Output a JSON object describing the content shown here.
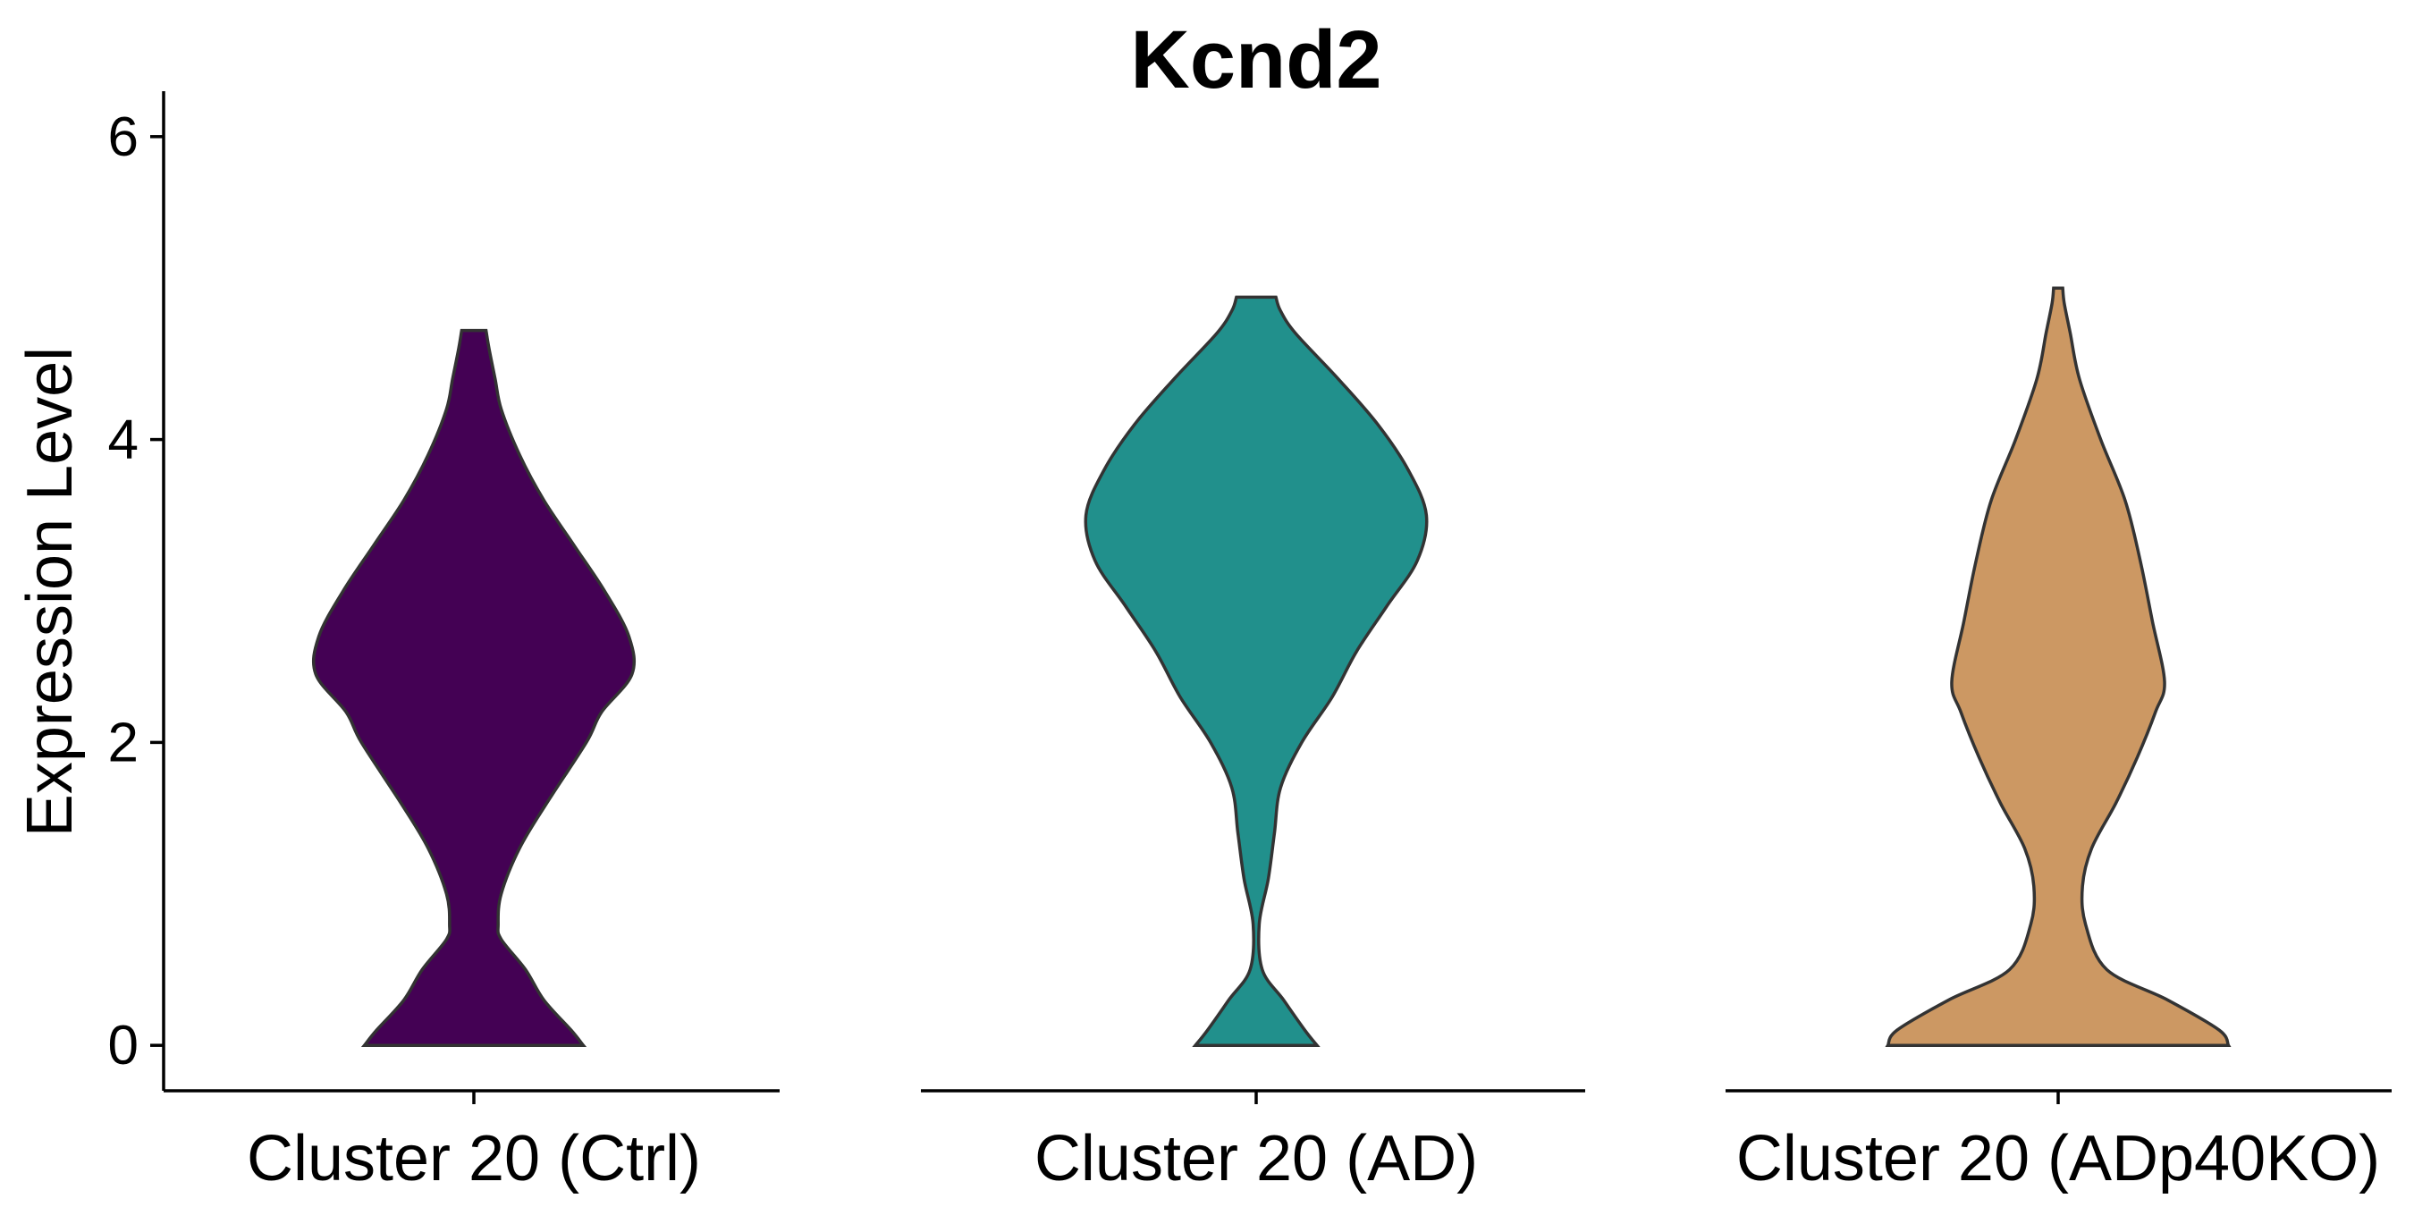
{
  "chart_data": {
    "type": "violin",
    "title": "Kcnd2",
    "xlabel": "",
    "ylabel": "Expression Level",
    "ylim": [
      -0.3,
      6.3
    ],
    "yticks": [
      0,
      2,
      4,
      6
    ],
    "categories": [
      "Cluster 20 (Ctrl)",
      "Cluster 20 (AD)",
      "Cluster 20 (ADp40KO)"
    ],
    "series": [
      {
        "category": "Cluster 20 (Ctrl)",
        "color": "#440154",
        "y_max": 4.72,
        "profile": [
          [
            0.0,
            0.36
          ],
          [
            0.1,
            0.32
          ],
          [
            0.3,
            0.23
          ],
          [
            0.5,
            0.17
          ],
          [
            0.7,
            0.09
          ],
          [
            0.8,
            0.08
          ],
          [
            1.0,
            0.09
          ],
          [
            1.3,
            0.15
          ],
          [
            1.6,
            0.24
          ],
          [
            2.0,
            0.37
          ],
          [
            2.2,
            0.42
          ],
          [
            2.45,
            0.52
          ],
          [
            2.7,
            0.51
          ],
          [
            3.0,
            0.43
          ],
          [
            3.3,
            0.33
          ],
          [
            3.6,
            0.23
          ],
          [
            3.9,
            0.15
          ],
          [
            4.2,
            0.09
          ],
          [
            4.4,
            0.07
          ],
          [
            4.6,
            0.05
          ],
          [
            4.72,
            0.04
          ]
        ]
      },
      {
        "category": "Cluster 20 (AD)",
        "color": "#21908C",
        "y_max": 4.94,
        "profile": [
          [
            0.0,
            0.2
          ],
          [
            0.1,
            0.16
          ],
          [
            0.3,
            0.09
          ],
          [
            0.5,
            0.02
          ],
          [
            0.8,
            0.01
          ],
          [
            1.1,
            0.04
          ],
          [
            1.4,
            0.06
          ],
          [
            1.7,
            0.08
          ],
          [
            2.0,
            0.15
          ],
          [
            2.3,
            0.25
          ],
          [
            2.6,
            0.33
          ],
          [
            2.9,
            0.43
          ],
          [
            3.2,
            0.53
          ],
          [
            3.5,
            0.56
          ],
          [
            3.8,
            0.5
          ],
          [
            4.1,
            0.4
          ],
          [
            4.4,
            0.27
          ],
          [
            4.7,
            0.13
          ],
          [
            4.85,
            0.08
          ],
          [
            4.94,
            0.065
          ]
        ]
      },
      {
        "category": "Cluster 20 (ADp40KO)",
        "color": "#CC9863",
        "y_max": 5.0,
        "profile": [
          [
            0.0,
            0.56
          ],
          [
            0.1,
            0.53
          ],
          [
            0.3,
            0.36
          ],
          [
            0.5,
            0.16
          ],
          [
            0.8,
            0.09
          ],
          [
            1.05,
            0.08
          ],
          [
            1.3,
            0.11
          ],
          [
            1.6,
            0.19
          ],
          [
            1.9,
            0.26
          ],
          [
            2.2,
            0.32
          ],
          [
            2.4,
            0.35
          ],
          [
            2.8,
            0.31
          ],
          [
            3.2,
            0.27
          ],
          [
            3.6,
            0.22
          ],
          [
            4.0,
            0.14
          ],
          [
            4.4,
            0.07
          ],
          [
            4.7,
            0.04
          ],
          [
            4.9,
            0.02
          ],
          [
            5.0,
            0.015
          ]
        ]
      }
    ]
  }
}
